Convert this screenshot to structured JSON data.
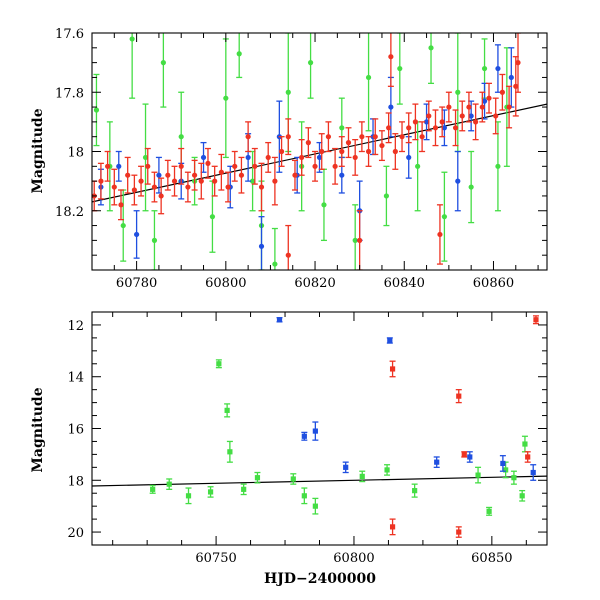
{
  "figure": {
    "xlabel": "HJD−2400000",
    "colors": {
      "green": "#44dd44",
      "blue": "#1f4fe0",
      "red": "#ee3322",
      "trend": "#000000"
    }
  },
  "chart_data": [
    {
      "type": "scatter",
      "name_hint": "top-panel",
      "xlabel": "",
      "ylabel": "Magnitude",
      "xlim": [
        60770,
        60872
      ],
      "ylim": [
        18.4,
        17.6
      ],
      "y_inverted": true,
      "xticks": [
        60780,
        60800,
        60820,
        60840,
        60860
      ],
      "yticks": [
        17.6,
        17.8,
        18,
        18.2
      ],
      "ytick_labels": [
        "17.6",
        "17.8",
        "18",
        "18.2"
      ],
      "trend_line": {
        "x": [
          60770,
          60872
        ],
        "y": [
          18.17,
          17.84
        ]
      },
      "series": [
        {
          "color": "green",
          "points": [
            [
              60771,
              17.86,
              0.12
            ],
            [
              60774,
              18.05,
              0.15
            ],
            [
              60777,
              18.25,
              0.12
            ],
            [
              60779,
              17.62,
              0.2
            ],
            [
              60782,
              18.02,
              0.18
            ],
            [
              60784,
              18.3,
              0.1
            ],
            [
              60786,
              17.7,
              0.15
            ],
            [
              60790,
              17.95,
              0.15
            ],
            [
              60793,
              18.1,
              0.08
            ],
            [
              60797,
              18.22,
              0.12
            ],
            [
              60800,
              17.82,
              0.2
            ],
            [
              60803,
              17.67,
              0.08
            ],
            [
              60806,
              18.1,
              0.1
            ],
            [
              60808,
              18.25,
              0.15
            ],
            [
              60811,
              18.38,
              0.12
            ],
            [
              60814,
              17.8,
              0.2
            ],
            [
              60817,
              18.05,
              0.15
            ],
            [
              60819,
              17.7,
              0.12
            ],
            [
              60822,
              18.18,
              0.12
            ],
            [
              60826,
              17.92,
              0.1
            ],
            [
              60829,
              18.3,
              0.12
            ],
            [
              60832,
              17.75,
              0.18
            ],
            [
              60836,
              18.15,
              0.1
            ],
            [
              60839,
              17.72,
              0.12
            ],
            [
              60843,
              18.05,
              0.15
            ],
            [
              60846,
              17.65,
              0.12
            ],
            [
              60849,
              18.22,
              0.15
            ],
            [
              60852,
              17.8,
              0.2
            ],
            [
              60855,
              18.12,
              0.12
            ],
            [
              60858,
              17.72,
              0.1
            ],
            [
              60861,
              18.05,
              0.15
            ],
            [
              60863,
              17.85,
              0.2
            ]
          ]
        },
        {
          "color": "blue",
          "points": [
            [
              60772,
              18.12,
              0.06
            ],
            [
              60776,
              18.05,
              0.05
            ],
            [
              60780,
              18.28,
              0.08
            ],
            [
              60785,
              18.08,
              0.06
            ],
            [
              60790,
              18.1,
              0.06
            ],
            [
              60795,
              18.02,
              0.05
            ],
            [
              60801,
              18.12,
              0.07
            ],
            [
              60805,
              18.02,
              0.08
            ],
            [
              60808,
              18.32,
              0.1
            ],
            [
              60812,
              17.95,
              0.12
            ],
            [
              60816,
              18.08,
              0.06
            ],
            [
              60821,
              18.02,
              0.05
            ],
            [
              60826,
              18.08,
              0.06
            ],
            [
              60830,
              18.2,
              0.1
            ],
            [
              60833,
              17.95,
              0.06
            ],
            [
              60837,
              17.85,
              0.1
            ],
            [
              60841,
              18.02,
              0.07
            ],
            [
              60845,
              17.9,
              0.06
            ],
            [
              60849,
              17.92,
              0.06
            ],
            [
              60852,
              18.1,
              0.1
            ],
            [
              60855,
              17.88,
              0.05
            ],
            [
              60858,
              17.83,
              0.06
            ],
            [
              60861,
              17.72,
              0.08
            ],
            [
              60864,
              17.75,
              0.1
            ]
          ]
        },
        {
          "color": "red",
          "points": [
            [
              60770.5,
              18.15,
              0.05
            ],
            [
              60772,
              18.1,
              0.06
            ],
            [
              60773.5,
              18.05,
              0.05
            ],
            [
              60775,
              18.12,
              0.06
            ],
            [
              60776.5,
              18.18,
              0.05
            ],
            [
              60778,
              18.08,
              0.06
            ],
            [
              60779.5,
              18.13,
              0.05
            ],
            [
              60781,
              18.1,
              0.05
            ],
            [
              60782.5,
              18.05,
              0.06
            ],
            [
              60784,
              18.12,
              0.05
            ],
            [
              60785.5,
              18.15,
              0.06
            ],
            [
              60787,
              18.08,
              0.05
            ],
            [
              60788.5,
              18.1,
              0.05
            ],
            [
              60790,
              18.05,
              0.06
            ],
            [
              60791.5,
              18.12,
              0.05
            ],
            [
              60793,
              18.08,
              0.05
            ],
            [
              60794.5,
              18.1,
              0.06
            ],
            [
              60796,
              18.04,
              0.05
            ],
            [
              60797.5,
              18.1,
              0.05
            ],
            [
              60799,
              18.07,
              0.06
            ],
            [
              60800.5,
              18.12,
              0.05
            ],
            [
              60802,
              18.05,
              0.05
            ],
            [
              60803.5,
              18.08,
              0.06
            ],
            [
              60805,
              17.95,
              0.05
            ],
            [
              60806.5,
              18.05,
              0.06
            ],
            [
              60808,
              18.12,
              0.08
            ],
            [
              60809.5,
              18.02,
              0.05
            ],
            [
              60811,
              18.1,
              0.08
            ],
            [
              60812.5,
              18.0,
              0.05
            ],
            [
              60814,
              17.95,
              0.06
            ],
            [
              60815.5,
              18.08,
              0.05
            ],
            [
              60817,
              18.02,
              0.06
            ],
            [
              60818.5,
              17.97,
              0.05
            ],
            [
              60820,
              18.05,
              0.05
            ],
            [
              60821.5,
              18.0,
              0.06
            ],
            [
              60823,
              17.95,
              0.05
            ],
            [
              60824.5,
              18.05,
              0.06
            ],
            [
              60826,
              18.0,
              0.05
            ],
            [
              60827.5,
              17.97,
              0.05
            ],
            [
              60829,
              18.02,
              0.06
            ],
            [
              60830.5,
              17.95,
              0.05
            ],
            [
              60832,
              18.0,
              0.05
            ],
            [
              60833.5,
              17.95,
              0.06
            ],
            [
              60835,
              17.98,
              0.05
            ],
            [
              60836.5,
              17.92,
              0.05
            ],
            [
              60838,
              18.0,
              0.06
            ],
            [
              60839.5,
              17.95,
              0.05
            ],
            [
              60841,
              17.92,
              0.05
            ],
            [
              60842.5,
              17.9,
              0.06
            ],
            [
              60844,
              17.95,
              0.05
            ],
            [
              60845.5,
              17.88,
              0.05
            ],
            [
              60847,
              17.92,
              0.06
            ],
            [
              60848.5,
              17.9,
              0.05
            ],
            [
              60850,
              17.85,
              0.05
            ],
            [
              60851.5,
              17.92,
              0.06
            ],
            [
              60853,
              17.88,
              0.05
            ],
            [
              60854.5,
              17.85,
              0.05
            ],
            [
              60856,
              17.9,
              0.06
            ],
            [
              60857.5,
              17.85,
              0.05
            ],
            [
              60859,
              17.82,
              0.05
            ],
            [
              60860.5,
              17.88,
              0.06
            ],
            [
              60862,
              17.8,
              0.06
            ],
            [
              60863.5,
              17.85,
              0.07
            ],
            [
              60865,
              17.78,
              0.1
            ],
            [
              60865.5,
              17.7,
              0.1
            ],
            [
              60814,
              18.35,
              0.1
            ],
            [
              60830,
              18.3,
              0.1
            ],
            [
              60848,
              18.28,
              0.1
            ],
            [
              60837,
              17.68,
              0.1
            ]
          ]
        }
      ]
    },
    {
      "type": "scatter",
      "name_hint": "bottom-panel",
      "xlabel": "HJD−2400000",
      "ylabel": "Magnitude",
      "xlim": [
        60705,
        60870
      ],
      "ylim": [
        20.5,
        11.5
      ],
      "y_inverted": true,
      "xticks": [
        60750,
        60800,
        60850
      ],
      "yticks": [
        12,
        14,
        16,
        18,
        20
      ],
      "ytick_labels": [
        "12",
        "14",
        "16",
        "18",
        "20"
      ],
      "trend_line": {
        "x": [
          60705,
          60870
        ],
        "y": [
          18.22,
          17.84
        ]
      },
      "series": [
        {
          "color": "green",
          "points": [
            [
              60751,
              13.5,
              0.15
            ],
            [
              60754,
              15.3,
              0.25
            ],
            [
              60755,
              16.9,
              0.4
            ],
            [
              60740,
              18.6,
              0.3
            ],
            [
              60748,
              18.45,
              0.2
            ],
            [
              60760,
              18.35,
              0.2
            ],
            [
              60782,
              18.6,
              0.3
            ],
            [
              60786,
              19.0,
              0.3
            ],
            [
              60803,
              17.85,
              0.2
            ],
            [
              60812,
              17.6,
              0.2
            ],
            [
              60822,
              18.4,
              0.25
            ],
            [
              60845,
              17.8,
              0.3
            ],
            [
              60855,
              17.6,
              0.3
            ],
            [
              60858,
              17.9,
              0.25
            ],
            [
              60862,
              16.6,
              0.3
            ],
            [
              60849,
              19.2,
              0.15
            ],
            [
              60861,
              18.6,
              0.2
            ],
            [
              60727,
              18.35,
              0.15
            ],
            [
              60733,
              18.15,
              0.2
            ],
            [
              60765,
              17.9,
              0.2
            ],
            [
              60778,
              17.95,
              0.2
            ]
          ]
        },
        {
          "color": "blue",
          "points": [
            [
              60773,
              11.8,
              0.08
            ],
            [
              60782,
              16.3,
              0.15
            ],
            [
              60786,
              16.1,
              0.35
            ],
            [
              60797,
              17.5,
              0.2
            ],
            [
              60813,
              12.6,
              0.1
            ],
            [
              60830,
              17.3,
              0.2
            ],
            [
              60842,
              17.1,
              0.2
            ],
            [
              60854,
              17.35,
              0.3
            ],
            [
              60865,
              17.7,
              0.3
            ]
          ]
        },
        {
          "color": "red",
          "points": [
            [
              60814,
              13.7,
              0.3
            ],
            [
              60814,
              19.8,
              0.3
            ],
            [
              60838,
              14.75,
              0.25
            ],
            [
              60838,
              20.0,
              0.2
            ],
            [
              60840,
              17.0,
              0.1
            ],
            [
              60863,
              17.1,
              0.2
            ],
            [
              60866,
              11.8,
              0.15
            ]
          ]
        }
      ]
    }
  ]
}
